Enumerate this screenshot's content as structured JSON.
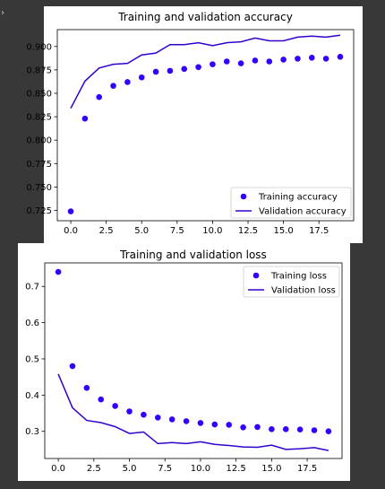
{
  "ui": {
    "background": "#383838",
    "corner_icon": "chevron-right-icon"
  },
  "chart_data": [
    {
      "type": "line",
      "title": "Training and validation accuracy",
      "xlabel": "",
      "ylabel": "",
      "x": [
        0,
        1,
        2,
        3,
        4,
        5,
        6,
        7,
        8,
        9,
        10,
        11,
        12,
        13,
        14,
        15,
        16,
        17,
        18,
        19
      ],
      "xlim": [
        -0.95,
        19.95
      ],
      "ylim": [
        0.714,
        0.918
      ],
      "xticks": [
        0.0,
        2.5,
        5.0,
        7.5,
        10.0,
        12.5,
        15.0,
        17.5
      ],
      "xtick_labels": [
        "0.0",
        "2.5",
        "5.0",
        "7.5",
        "10.0",
        "12.5",
        "15.0",
        "17.5"
      ],
      "yticks": [
        0.725,
        0.75,
        0.775,
        0.8,
        0.825,
        0.85,
        0.875,
        0.9
      ],
      "ytick_labels": [
        "0.725",
        "0.750",
        "0.775",
        "0.800",
        "0.825",
        "0.850",
        "0.875",
        "0.900"
      ],
      "grid": false,
      "legend_position": "bottom-right",
      "series": [
        {
          "name": "Training accuracy",
          "style": "markers",
          "color": "#3300ff",
          "values": [
            0.724,
            0.823,
            0.846,
            0.858,
            0.862,
            0.867,
            0.873,
            0.874,
            0.876,
            0.878,
            0.881,
            0.884,
            0.882,
            0.885,
            0.884,
            0.886,
            0.887,
            0.888,
            0.887,
            0.889
          ]
        },
        {
          "name": "Validation accuracy",
          "style": "line",
          "color": "#3300cc",
          "values": [
            0.834,
            0.863,
            0.877,
            0.881,
            0.882,
            0.891,
            0.893,
            0.902,
            0.902,
            0.904,
            0.901,
            0.904,
            0.905,
            0.909,
            0.906,
            0.906,
            0.91,
            0.911,
            0.91,
            0.912
          ]
        }
      ]
    },
    {
      "type": "line",
      "title": "Training and validation loss",
      "xlabel": "",
      "ylabel": "",
      "x": [
        0,
        1,
        2,
        3,
        4,
        5,
        6,
        7,
        8,
        9,
        10,
        11,
        12,
        13,
        14,
        15,
        16,
        17,
        18,
        19
      ],
      "xlim": [
        -0.95,
        19.95
      ],
      "ylim": [
        0.225,
        0.765
      ],
      "xticks": [
        0.0,
        2.5,
        5.0,
        7.5,
        10.0,
        12.5,
        15.0,
        17.5
      ],
      "xtick_labels": [
        "0.0",
        "2.5",
        "5.0",
        "7.5",
        "10.0",
        "12.5",
        "15.0",
        "17.5"
      ],
      "yticks": [
        0.3,
        0.4,
        0.5,
        0.6,
        0.7
      ],
      "ytick_labels": [
        "0.3",
        "0.4",
        "0.5",
        "0.6",
        "0.7"
      ],
      "grid": false,
      "legend_position": "top-right",
      "series": [
        {
          "name": "Training loss",
          "style": "markers",
          "color": "#3300ff",
          "values": [
            0.74,
            0.48,
            0.42,
            0.388,
            0.37,
            0.355,
            0.346,
            0.338,
            0.333,
            0.328,
            0.323,
            0.319,
            0.318,
            0.311,
            0.312,
            0.306,
            0.306,
            0.305,
            0.303,
            0.3
          ]
        },
        {
          "name": "Validation loss",
          "style": "line",
          "color": "#3300cc",
          "values": [
            0.458,
            0.365,
            0.33,
            0.324,
            0.313,
            0.294,
            0.298,
            0.266,
            0.269,
            0.266,
            0.271,
            0.264,
            0.261,
            0.257,
            0.256,
            0.262,
            0.25,
            0.252,
            0.255,
            0.247
          ]
        }
      ]
    }
  ]
}
